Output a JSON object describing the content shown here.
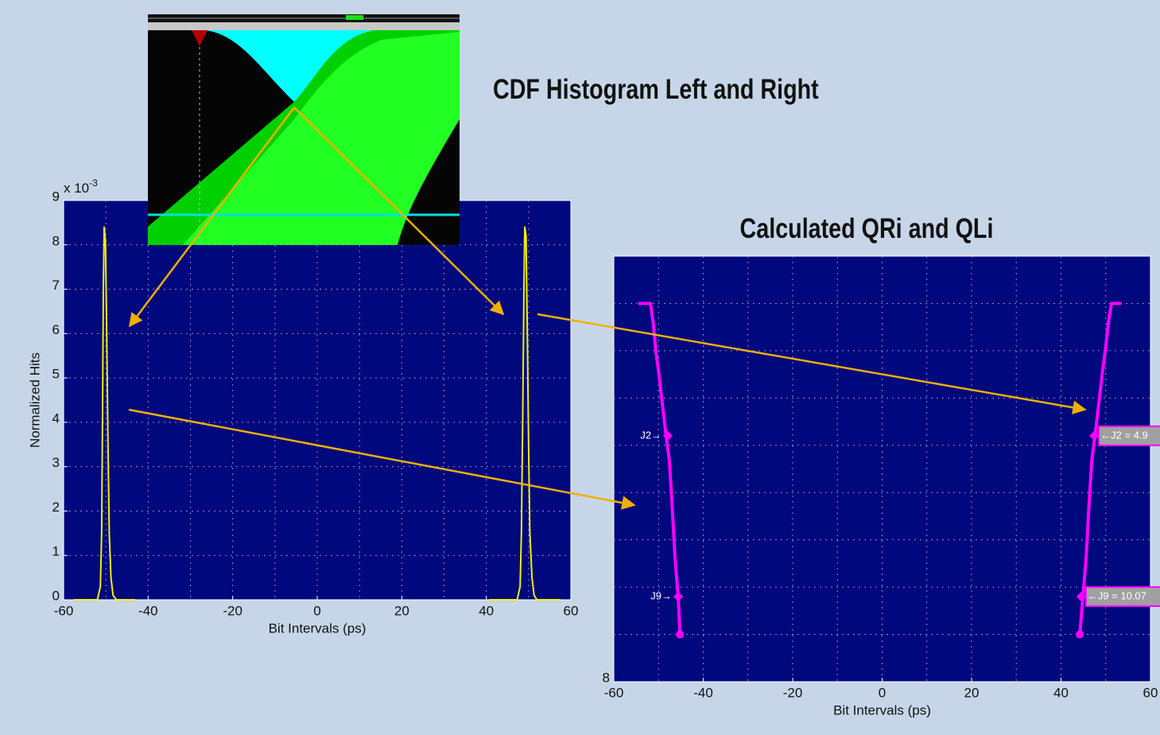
{
  "chart_data": [
    {
      "type": "line",
      "title": "CDF Histogram Left and Right",
      "xlabel": "Bit Intervals (ps)",
      "ylabel": "Normalized Hits",
      "y_multiplier": "x 10",
      "y_exponent": "-3",
      "xlim": [
        -60,
        60
      ],
      "ylim": [
        0,
        9
      ],
      "xticks": [
        -60,
        -40,
        -20,
        0,
        20,
        40,
        60
      ],
      "yticks": [
        0,
        1,
        2,
        3,
        4,
        5,
        6,
        7,
        8,
        9
      ],
      "grid": true,
      "xgrid_step": 10,
      "ygrid_step": 1,
      "series": [
        {
          "color": "#f0f000",
          "x": [
            -57.6,
            -52,
            -51.3,
            -51,
            -50.8,
            -50.6,
            -50.4,
            -50.1,
            -49.8,
            -49.5,
            -49.2,
            -48.8,
            -48.3,
            -47.5,
            -43,
            null,
            40.6,
            47.3,
            48,
            48.3,
            48.6,
            48.9,
            49.1,
            49.4,
            49.7,
            50,
            50.3,
            50.8,
            51.3,
            52,
            57.5
          ],
          "values": [
            0,
            0,
            0.3,
            1.5,
            4,
            7,
            8.4,
            8.1,
            6,
            3.5,
            1.5,
            0.5,
            0.1,
            0,
            0,
            null,
            0,
            0,
            0.3,
            1.5,
            4,
            7,
            8.4,
            8.2,
            6,
            3.5,
            1.5,
            0.5,
            0.1,
            0,
            0
          ]
        }
      ]
    },
    {
      "type": "line",
      "title": "Calculated QRi and QLi",
      "xlabel": "Bit Intervals (ps)",
      "xlim": [
        -60,
        60
      ],
      "ylim": [
        8,
        -1
      ],
      "xticks": [
        -60,
        -40,
        -20,
        0,
        20,
        40,
        60
      ],
      "yticks": [
        8
      ],
      "grid": true,
      "xgrid_step": 10,
      "ygrid_step": 1,
      "series": [
        {
          "color": "#ff00ff",
          "x": [
            -54.5,
            -51.8,
            -51.2,
            -50.6,
            -49.9,
            -49.3,
            -48.8,
            -48.3,
            -47.6,
            -47,
            -46.3,
            -45.6,
            -45.2
          ],
          "values": [
            0,
            0,
            0.4,
            1,
            1.5,
            2,
            2.4,
            2.8,
            3.3,
            4.2,
            5.4,
            6.2,
            7
          ]
        },
        {
          "color": "#ff00ff",
          "x": [
            53.4,
            51.3,
            50.6,
            49.9,
            49.2,
            48.6,
            48.1,
            47.6,
            46.9,
            46.3,
            45.6,
            44.9,
            44.2
          ],
          "values": [
            0,
            0,
            0.4,
            1,
            1.5,
            2,
            2.4,
            2.8,
            3.3,
            4.2,
            5.4,
            6.2,
            7
          ]
        }
      ],
      "markers": [
        {
          "label": "J2→",
          "x": -47.9,
          "y": 2.8
        },
        {
          "label": "J9→",
          "x": -45.6,
          "y": 6.2
        },
        {
          "label": "←J2 = 4.9",
          "x": 47.4,
          "y": 2.8
        },
        {
          "label": "←J9 = 10.07",
          "x": 44.5,
          "y": 6.2
        }
      ]
    }
  ]
}
